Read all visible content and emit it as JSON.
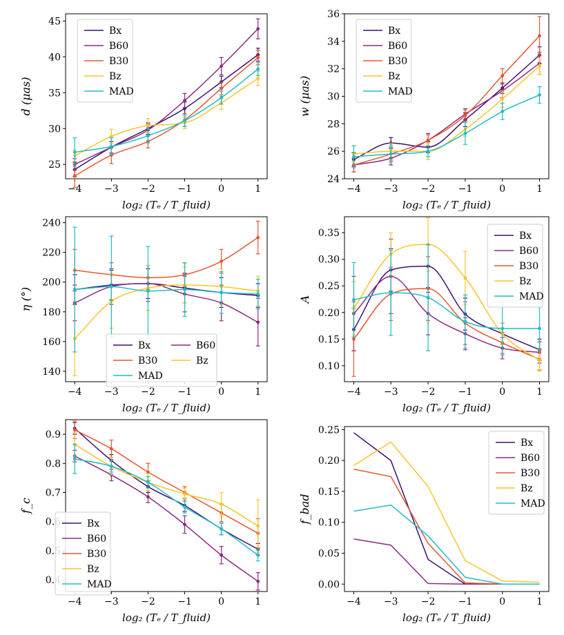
{
  "colors": {
    "Bx": "#3b0f70",
    "B60": "#8c2981",
    "B30": "#e5562f",
    "Bz": "#f9c42a",
    "MAD": "#1fbcc9",
    "axis": "#000000"
  },
  "chart_data": [
    {
      "type": "line",
      "id": "d",
      "ylabel": "d (μas)",
      "xlabel": "log₂ (Tₑ / T_fluid)",
      "x": [
        -4,
        -3,
        -2,
        -1,
        0,
        1
      ],
      "xticks": [
        "−4",
        "−3",
        "−2",
        "−1",
        "0",
        "1"
      ],
      "ylim": [
        23,
        46
      ],
      "yticks": [
        25,
        30,
        35,
        40,
        45
      ],
      "legend": "top-left",
      "series": [
        {
          "name": "Bx",
          "values": [
            24.3,
            27.4,
            30.0,
            32.8,
            36.5,
            40.3
          ],
          "err": [
            1.0,
            0.8,
            0.8,
            0.9,
            0.8,
            0.9
          ]
        },
        {
          "name": "B60",
          "values": [
            25.0,
            27.4,
            29.8,
            33.9,
            38.7,
            43.9
          ],
          "err": [
            0.8,
            0.8,
            0.8,
            1.0,
            1.2,
            1.4
          ]
        },
        {
          "name": "B30",
          "values": [
            23.4,
            26.3,
            28.2,
            31.2,
            35.6,
            39.9
          ],
          "err": [
            1.6,
            1.2,
            0.9,
            0.9,
            0.9,
            1.0
          ]
        },
        {
          "name": "Bz",
          "values": [
            26.2,
            28.9,
            30.4,
            30.8,
            33.6,
            37.0
          ],
          "err": [
            0.8,
            1.0,
            1.0,
            0.8,
            0.9,
            1.0
          ]
        },
        {
          "name": "MAD",
          "values": [
            26.7,
            27.5,
            29.0,
            31.1,
            34.3,
            38.3
          ],
          "err": [
            2.0,
            1.2,
            1.0,
            0.8,
            0.9,
            0.9
          ]
        }
      ]
    },
    {
      "type": "line",
      "id": "w",
      "ylabel": "w (μas)",
      "xlabel": "log₂ (Tₑ / T_fluid)",
      "x": [
        -4,
        -3,
        -2,
        -1,
        0,
        1
      ],
      "xticks": [
        "−4",
        "−3",
        "−2",
        "−1",
        "0",
        "1"
      ],
      "ylim": [
        24,
        36
      ],
      "yticks": [
        24,
        26,
        28,
        30,
        32,
        34,
        36
      ],
      "legend": "top-left",
      "series": [
        {
          "name": "Bx",
          "values": [
            25.4,
            26.6,
            26.3,
            28.3,
            30.6,
            33.0
          ],
          "err": [
            0.5,
            0.4,
            0.4,
            0.5,
            0.4,
            0.6
          ]
        },
        {
          "name": "B60",
          "values": [
            25.0,
            25.5,
            26.8,
            28.7,
            30.4,
            32.4
          ],
          "err": [
            0.5,
            0.5,
            0.5,
            0.4,
            0.5,
            0.8
          ]
        },
        {
          "name": "B30",
          "values": [
            25.0,
            25.8,
            26.8,
            28.6,
            31.5,
            34.4
          ],
          "err": [
            0.5,
            0.5,
            0.4,
            0.4,
            0.5,
            1.4
          ]
        },
        {
          "name": "Bz",
          "values": [
            25.8,
            26.0,
            26.0,
            27.6,
            29.8,
            32.2
          ],
          "err": [
            0.6,
            0.6,
            0.6,
            0.5,
            0.6,
            0.6
          ]
        },
        {
          "name": "MAD",
          "values": [
            25.6,
            25.8,
            26.0,
            27.3,
            28.9,
            30.1
          ],
          "err": [
            0.8,
            0.6,
            0.4,
            0.8,
            0.6,
            0.6
          ]
        }
      ]
    },
    {
      "type": "line",
      "id": "eta",
      "ylabel": "η (°)",
      "xlabel": "log₂ (Tₑ / T_fluid)",
      "x": [
        -4,
        -3,
        -2,
        -1,
        0,
        1
      ],
      "xticks": [
        "−4",
        "−3",
        "−2",
        "−1",
        "0",
        "1"
      ],
      "ylim": [
        133,
        244
      ],
      "yticks": [
        140,
        160,
        180,
        200,
        220,
        240
      ],
      "legend": "lower-center, 2 columns",
      "series": [
        {
          "name": "Bx",
          "values": [
            195,
            198,
            199,
            196,
            193,
            191
          ],
          "err": [
            10,
            10,
            10,
            10,
            10,
            8
          ]
        },
        {
          "name": "B60",
          "values": [
            186,
            197,
            199,
            192,
            186,
            173
          ],
          "err": [
            12,
            12,
            12,
            12,
            12,
            16
          ]
        },
        {
          "name": "B30",
          "values": [
            208,
            205,
            203,
            205,
            214,
            230
          ],
          "err": [
            14,
            8,
            8,
            8,
            8,
            11
          ]
        },
        {
          "name": "Bz",
          "values": [
            162,
            187,
            196,
            198,
            197,
            194
          ],
          "err": [
            25,
            18,
            15,
            12,
            12,
            10
          ]
        },
        {
          "name": "MAD",
          "values": [
            195,
            197,
            194,
            195,
            193,
            192
          ],
          "err": [
            42,
            34,
            30,
            18,
            14,
            10
          ]
        }
      ]
    },
    {
      "type": "line",
      "id": "A",
      "ylabel": "A",
      "xlabel": "log₂ (Tₑ / T_fluid)",
      "x": [
        -4,
        -3,
        -2,
        -1,
        0,
        1
      ],
      "xticks": [
        "−4",
        "−3",
        "−2",
        "−1",
        "0",
        "1"
      ],
      "ylim": [
        0.07,
        0.38
      ],
      "yticks": [
        0.1,
        0.15,
        0.2,
        0.25,
        0.3,
        0.35
      ],
      "ytick_labels": [
        "0.10",
        "0.15",
        "0.20",
        "0.25",
        "0.30",
        "0.35"
      ],
      "legend": "top-right",
      "series": [
        {
          "name": "Bx",
          "values": [
            0.168,
            0.28,
            0.287,
            0.197,
            0.16,
            0.13
          ],
          "err": [
            0.04,
            0.04,
            0.04,
            0.03,
            0.02,
            0.02
          ]
        },
        {
          "name": "B60",
          "values": [
            0.198,
            0.268,
            0.198,
            0.16,
            0.133,
            0.125
          ],
          "err": [
            0.07,
            0.07,
            0.04,
            0.03,
            0.02,
            0.02
          ]
        },
        {
          "name": "B30",
          "values": [
            0.15,
            0.235,
            0.245,
            0.18,
            0.143,
            0.112
          ],
          "err": [
            0.07,
            0.05,
            0.06,
            0.04,
            0.02,
            0.02
          ]
        },
        {
          "name": "Bz",
          "values": [
            0.208,
            0.31,
            0.328,
            0.265,
            0.16,
            0.11
          ],
          "err": [
            0.05,
            0.04,
            0.05,
            0.05,
            0.02,
            0.02
          ]
        },
        {
          "name": "MAD",
          "values": [
            0.224,
            0.237,
            0.228,
            0.183,
            0.17,
            0.17
          ],
          "err": [
            0.07,
            0.08,
            0.1,
            0.05,
            0.05,
            0.04
          ]
        }
      ]
    },
    {
      "type": "line",
      "id": "fc",
      "ylabel": "f_c",
      "xlabel": "log₂ (Tₑ / T_fluid)",
      "x": [
        -4,
        -3,
        -2,
        -1,
        0,
        1
      ],
      "xticks": [
        "−4",
        "−3",
        "−2",
        "−1",
        "0",
        "1"
      ],
      "ylim": [
        0.36,
        0.95
      ],
      "yticks": [
        0.4,
        0.5,
        0.6,
        0.7,
        0.8,
        0.9
      ],
      "ytick_labels": [
        "0.4",
        "0.5",
        "0.6",
        "0.7",
        "0.8",
        "0.9"
      ],
      "legend": "bottom-left",
      "series": [
        {
          "name": "Bx",
          "values": [
            0.92,
            0.81,
            0.72,
            0.655,
            0.575,
            0.505
          ],
          "err": [
            0.02,
            0.02,
            0.02,
            0.02,
            0.02,
            0.02
          ]
        },
        {
          "name": "B60",
          "values": [
            0.825,
            0.76,
            0.685,
            0.59,
            0.485,
            0.395
          ],
          "err": [
            0.02,
            0.02,
            0.02,
            0.03,
            0.03,
            0.03
          ]
        },
        {
          "name": "B30",
          "values": [
            0.915,
            0.85,
            0.77,
            0.7,
            0.63,
            0.56
          ],
          "err": [
            0.03,
            0.03,
            0.03,
            0.02,
            0.03,
            0.05
          ]
        },
        {
          "name": "Bz",
          "values": [
            0.865,
            0.79,
            0.735,
            0.695,
            0.66,
            0.585
          ],
          "err": [
            0.04,
            0.03,
            0.03,
            0.02,
            0.04,
            0.09
          ]
        },
        {
          "name": "MAD",
          "values": [
            0.815,
            0.79,
            0.735,
            0.65,
            0.575,
            0.485
          ],
          "err": [
            0.05,
            0.02,
            0.02,
            0.02,
            0.02,
            0.02
          ]
        }
      ]
    },
    {
      "type": "line",
      "id": "fbad",
      "ylabel": "f_bad",
      "xlabel": "log₂ (Tₑ / T_fluid)",
      "x": [
        -4,
        -3,
        -2,
        -1,
        0,
        1
      ],
      "xticks": [
        "−4",
        "−3",
        "−2",
        "−1",
        "0",
        "1"
      ],
      "ylim": [
        -0.012,
        0.255
      ],
      "yticks": [
        0.0,
        0.05,
        0.1,
        0.15,
        0.2,
        0.25
      ],
      "ytick_labels": [
        "0.00",
        "0.05",
        "0.10",
        "0.15",
        "0.20",
        "0.25"
      ],
      "legend": "top-right",
      "series": [
        {
          "name": "Bx",
          "values": [
            0.245,
            0.2,
            0.04,
            0.0,
            0.0,
            0.0
          ]
        },
        {
          "name": "B60",
          "values": [
            0.073,
            0.063,
            0.001,
            0.0,
            0.0,
            0.0
          ]
        },
        {
          "name": "B30",
          "values": [
            0.186,
            0.174,
            0.066,
            0.002,
            0.0,
            0.0
          ]
        },
        {
          "name": "Bz",
          "values": [
            0.192,
            0.23,
            0.158,
            0.038,
            0.005,
            0.003
          ]
        },
        {
          "name": "MAD",
          "values": [
            0.118,
            0.128,
            0.078,
            0.011,
            0.0,
            0.0
          ]
        }
      ]
    }
  ]
}
